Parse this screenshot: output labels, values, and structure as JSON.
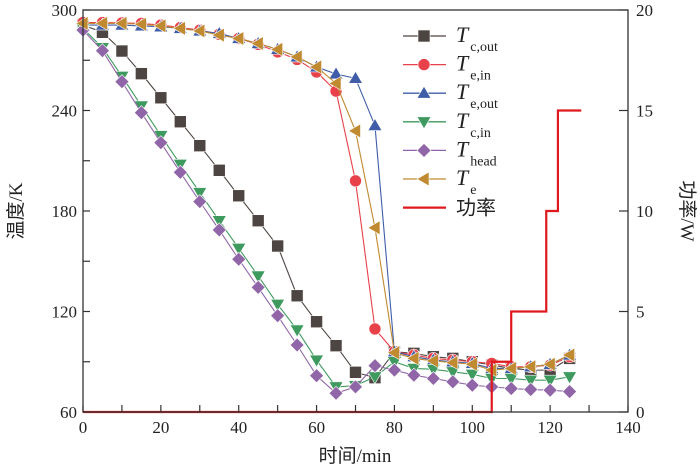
{
  "chart_data": {
    "type": "line",
    "title": "",
    "xlabel": "时间/min",
    "ylabel": "温度/K",
    "y2label": "功率/W",
    "xlim": [
      0,
      140
    ],
    "ylim": [
      60,
      300
    ],
    "y2lim": [
      0,
      20
    ],
    "xticks": [
      0,
      20,
      40,
      60,
      80,
      100,
      120,
      140
    ],
    "yticks": [
      60,
      120,
      180,
      240,
      300
    ],
    "y2ticks": [
      0,
      5,
      10,
      15,
      20
    ],
    "grid": false,
    "legend_position": "top-right-inside",
    "x": [
      0,
      5,
      10,
      15,
      20,
      25,
      30,
      35,
      40,
      45,
      50,
      55,
      60,
      65,
      70,
      75,
      80,
      85,
      90,
      95,
      100,
      105,
      110,
      115,
      120,
      125
    ],
    "series": [
      {
        "name": "T",
        "sub": "c,out",
        "color": "#4d4542",
        "marker": "square",
        "values": [
          291,
          286.7,
          275.5,
          262,
          247.6,
          233.3,
          219,
          204.3,
          189.1,
          174.2,
          159.1,
          129.4,
          113.9,
          99.6,
          83.7,
          80.5,
          96,
          95,
          93,
          92,
          90,
          88,
          86,
          85,
          85,
          92
        ]
      },
      {
        "name": "T",
        "sub": "e,in",
        "color": "#e8414a",
        "marker": "circle",
        "values": [
          292.5,
          292.5,
          292.3,
          292,
          291,
          289.5,
          288,
          285.5,
          283,
          279.5,
          275,
          270.5,
          263,
          251.6,
          198,
          109.6,
          96,
          94,
          92,
          91,
          90,
          89,
          87,
          87,
          88,
          93
        ]
      },
      {
        "name": "T",
        "sub": "e,out",
        "color": "#3f5da8",
        "marker": "triangle-up",
        "values": [
          291,
          291,
          291,
          290.5,
          290,
          289,
          287.5,
          286,
          283,
          280,
          276.5,
          272,
          266,
          261.8,
          259.2,
          231,
          96,
          93,
          91,
          90,
          89,
          86,
          86,
          87,
          88.5,
          94
        ]
      },
      {
        "name": "T",
        "sub": "c,in",
        "color": "#3e9a5e",
        "marker": "triangle-down",
        "values": [
          289,
          277.5,
          260.4,
          242.7,
          225,
          207.9,
          191,
          174.2,
          157.7,
          141.2,
          124.3,
          109,
          91,
          75,
          75.7,
          81,
          90,
          86,
          85.5,
          84,
          82.5,
          80,
          80,
          79,
          79,
          81
        ]
      },
      {
        "name": "T",
        "sub": "head",
        "color": "#9066a8",
        "marker": "diamond",
        "values": [
          288,
          275.7,
          257.2,
          238.7,
          220.8,
          203.1,
          185.6,
          168.7,
          151.2,
          134.4,
          117.5,
          100,
          81.7,
          71.2,
          75,
          87.7,
          85,
          82,
          80,
          78,
          76,
          75,
          74,
          73.4,
          73,
          72.2
        ]
      },
      {
        "name": "T",
        "sub": "e",
        "color": "#c08a30",
        "marker": "triangle-left",
        "values": [
          292,
          292,
          292,
          291.5,
          290.5,
          289,
          287.5,
          285,
          283,
          280,
          276.5,
          272,
          266,
          256.2,
          227.8,
          170,
          95.4,
          92,
          90.5,
          89.5,
          88.5,
          85,
          86,
          87,
          88.5,
          94
        ]
      }
    ],
    "power": {
      "name": "功率",
      "color": "#e0191e",
      "axis": "right",
      "x": [
        0,
        105,
        105,
        110,
        110,
        119,
        119,
        122,
        122,
        128
      ],
      "values": [
        0,
        0,
        2.5,
        2.5,
        5,
        5,
        10,
        10,
        15,
        15
      ]
    }
  }
}
